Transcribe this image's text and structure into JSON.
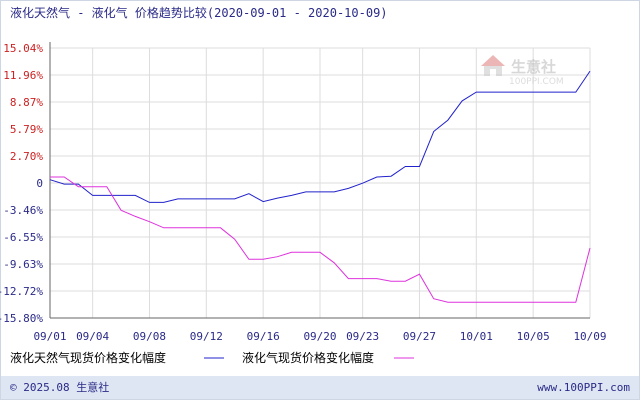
{
  "colors": {
    "series1": "#2222cc",
    "series2": "#dd33dd",
    "text": "#2a2a88",
    "positive_tick": "#cc2222",
    "grid": "#dddddd",
    "axis": "#666666",
    "footer_bg": "#dde6f2"
  },
  "chart_data": {
    "type": "line",
    "title": "液化天然气 - 液化气 价格趋势比较(2020-09-01 - 2020-10-09)",
    "xlabel": "",
    "ylabel": "",
    "x_start": "09/01",
    "x_end": "10/09",
    "x_ticks": [
      "09/01",
      "09/04",
      "09/08",
      "09/12",
      "09/16",
      "09/20",
      "09/23",
      "09/27",
      "10/01",
      "10/05",
      "10/09"
    ],
    "y_ticks": [
      "15.04%",
      "11.96%",
      "8.87%",
      "5.79%",
      "2.70%",
      "0",
      "-3.46%",
      "-6.55%",
      "-9.63%",
      "-12.72%",
      "-15.80%"
    ],
    "ylim": [
      -15.8,
      15.04
    ],
    "grid": true,
    "legend_position": "bottom",
    "series": [
      {
        "name": "液化天然气现货价格变化幅度",
        "points": [
          [
            "09/01",
            0
          ],
          [
            "09/02",
            -0.5
          ],
          [
            "09/03",
            -0.5
          ],
          [
            "09/04",
            -1.8
          ],
          [
            "09/05",
            -1.8
          ],
          [
            "09/06",
            -1.8
          ],
          [
            "09/07",
            -1.8
          ],
          [
            "09/08",
            -2.6
          ],
          [
            "09/09",
            -2.6
          ],
          [
            "09/10",
            -2.2
          ],
          [
            "09/11",
            -2.2
          ],
          [
            "09/12",
            -2.2
          ],
          [
            "09/13",
            -2.2
          ],
          [
            "09/14",
            -2.2
          ],
          [
            "09/15",
            -1.6
          ],
          [
            "09/16",
            -2.5
          ],
          [
            "09/17",
            -2.1
          ],
          [
            "09/18",
            -1.8
          ],
          [
            "09/19",
            -1.4
          ],
          [
            "09/20",
            -1.4
          ],
          [
            "09/21",
            -1.4
          ],
          [
            "09/22",
            -1.0
          ],
          [
            "09/23",
            -0.4
          ],
          [
            "09/24",
            0.3
          ],
          [
            "09/25",
            0.4
          ],
          [
            "09/26",
            1.5
          ],
          [
            "09/27",
            1.5
          ],
          [
            "09/28",
            5.5
          ],
          [
            "09/29",
            6.8
          ],
          [
            "09/30",
            9.0
          ],
          [
            "10/01",
            10.0
          ],
          [
            "10/02",
            10.0
          ],
          [
            "10/03",
            10.0
          ],
          [
            "10/04",
            10.0
          ],
          [
            "10/05",
            10.0
          ],
          [
            "10/06",
            10.0
          ],
          [
            "10/07",
            10.0
          ],
          [
            "10/08",
            10.0
          ],
          [
            "10/09",
            12.4
          ]
        ]
      },
      {
        "name": "液化气现货价格变化幅度",
        "points": [
          [
            "09/01",
            0.3
          ],
          [
            "09/02",
            0.3
          ],
          [
            "09/03",
            -0.8
          ],
          [
            "09/04",
            -0.8
          ],
          [
            "09/05",
            -0.8
          ],
          [
            "09/06",
            -3.5
          ],
          [
            "09/07",
            -4.2
          ],
          [
            "09/08",
            -4.8
          ],
          [
            "09/09",
            -5.5
          ],
          [
            "09/10",
            -5.5
          ],
          [
            "09/11",
            -5.5
          ],
          [
            "09/12",
            -5.5
          ],
          [
            "09/13",
            -5.5
          ],
          [
            "09/14",
            -6.8
          ],
          [
            "09/15",
            -9.1
          ],
          [
            "09/16",
            -9.1
          ],
          [
            "09/17",
            -8.8
          ],
          [
            "09/18",
            -8.3
          ],
          [
            "09/19",
            -8.3
          ],
          [
            "09/20",
            -8.3
          ],
          [
            "09/21",
            -9.5
          ],
          [
            "09/22",
            -11.3
          ],
          [
            "09/23",
            -11.3
          ],
          [
            "09/24",
            -11.3
          ],
          [
            "09/25",
            -11.6
          ],
          [
            "09/26",
            -11.6
          ],
          [
            "09/27",
            -10.8
          ],
          [
            "09/28",
            -13.6
          ],
          [
            "09/29",
            -14.0
          ],
          [
            "09/30",
            -14.0
          ],
          [
            "10/01",
            -14.0
          ],
          [
            "10/02",
            -14.0
          ],
          [
            "10/03",
            -14.0
          ],
          [
            "10/04",
            -14.0
          ],
          [
            "10/05",
            -14.0
          ],
          [
            "10/06",
            -14.0
          ],
          [
            "10/07",
            -14.0
          ],
          [
            "10/08",
            -14.0
          ],
          [
            "10/09",
            -7.8
          ]
        ]
      }
    ]
  },
  "watermark": {
    "cn": "生意社",
    "url": "100PPI.COM"
  },
  "footer": {
    "copyright": "© 2025.08 生意社",
    "website": "www.100PPI.com"
  }
}
